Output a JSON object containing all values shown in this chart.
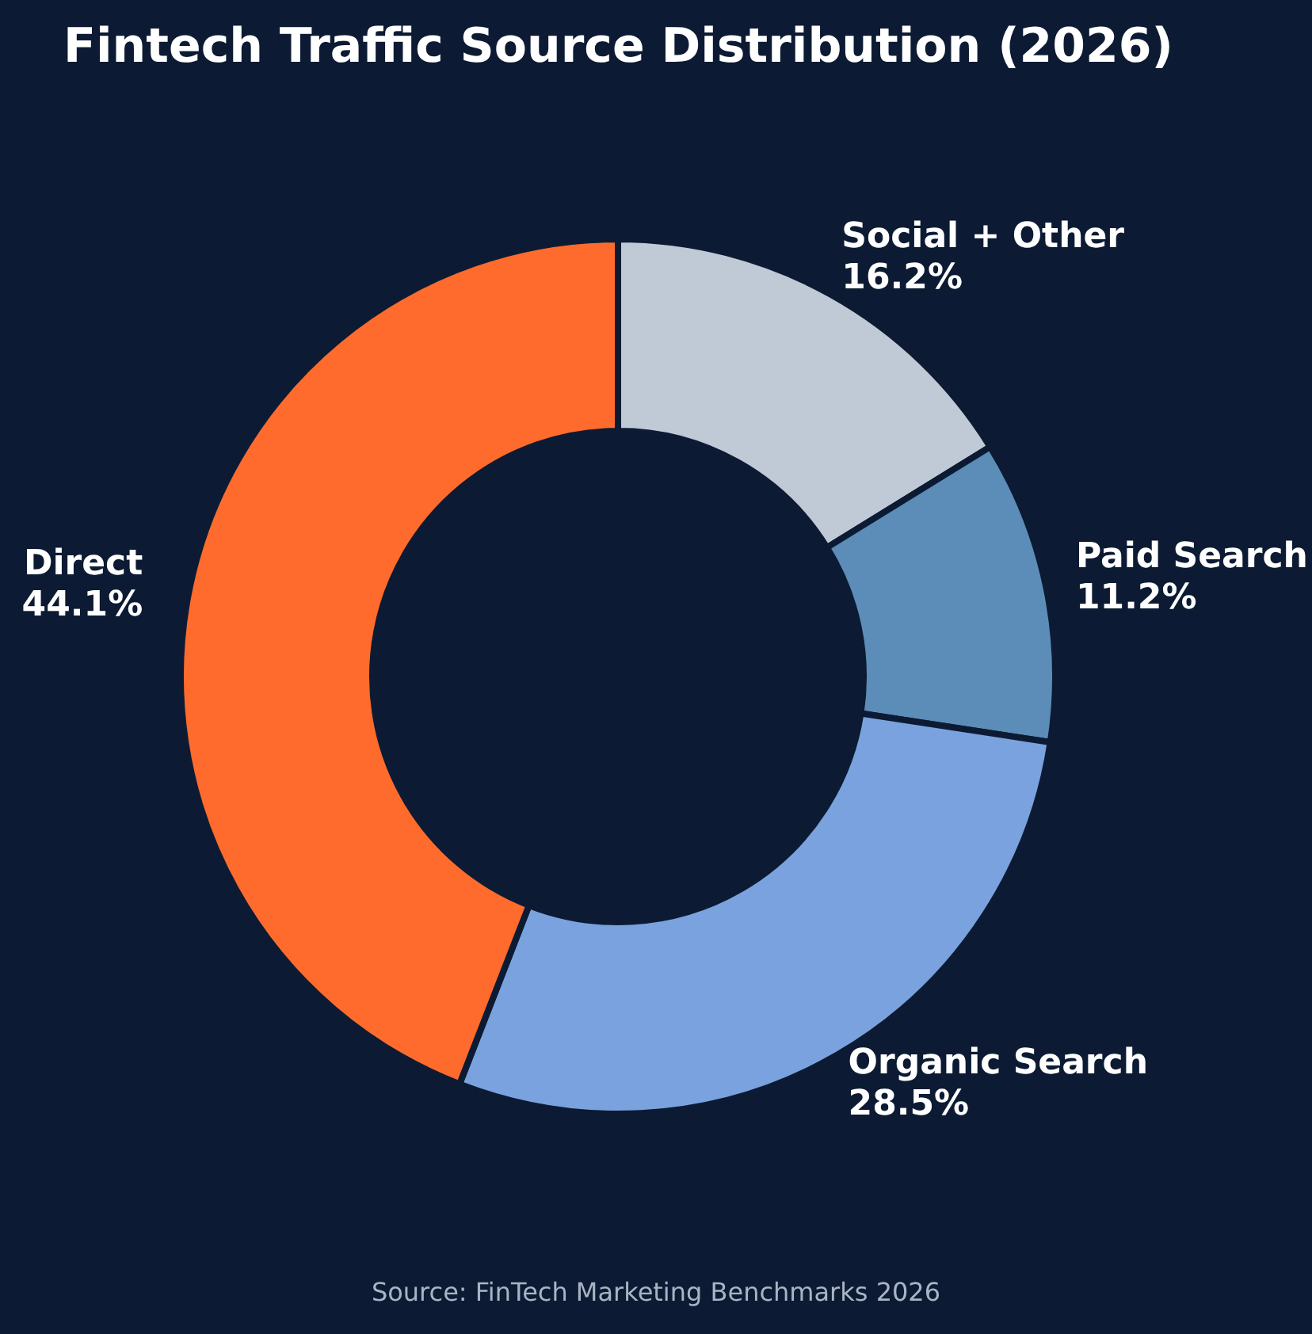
{
  "chart_data": {
    "type": "donut",
    "title": "Fintech Traffic Source Distribution (2026)",
    "categories": [
      "Social + Other",
      "Paid Search",
      "Organic Search",
      "Direct"
    ],
    "values": [
      16.2,
      11.2,
      28.5,
      44.1
    ],
    "value_labels": [
      "16.2%",
      "11.2%",
      "28.5%",
      "44.1%"
    ],
    "colors": [
      "#c0c9d6",
      "#5b8db8",
      "#7aa2de",
      "#ff6b2c"
    ],
    "legend": false,
    "annotations": [
      "Source: FinTech Marketing Benchmarks 2026"
    ]
  }
}
